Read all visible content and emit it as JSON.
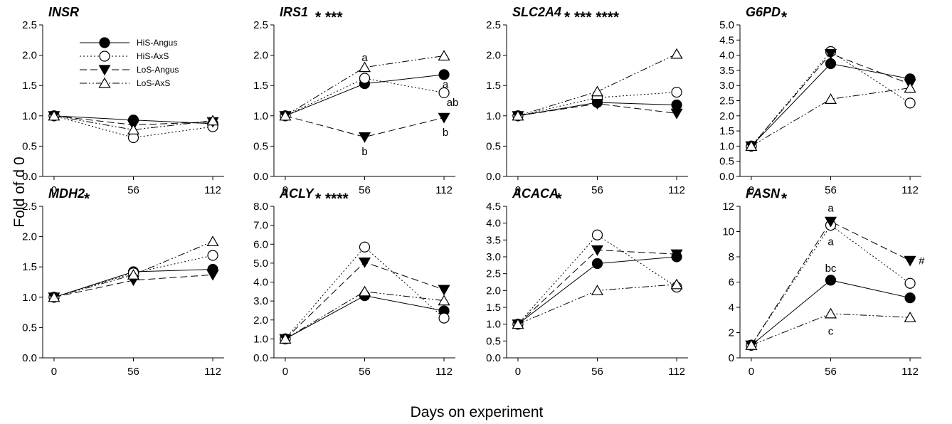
{
  "figure": {
    "ylabel": "Fold of d 0",
    "xlabel": "Days on experiment"
  },
  "legend": [
    {
      "name": "HiS-Angus",
      "marker": "circle-filled",
      "dash": "solid"
    },
    {
      "name": "HiS-AxS",
      "marker": "circle-open",
      "dash": "dotted"
    },
    {
      "name": "LoS-Angus",
      "marker": "triangle-down-filled",
      "dash": "dashed"
    },
    {
      "name": "LoS-AxS",
      "marker": "triangle-up-open",
      "dash": "dashdotdot"
    }
  ],
  "chart_data": [
    {
      "type": "line",
      "title": "INSR",
      "stars": "",
      "x": [
        0,
        56,
        112
      ],
      "ylim": [
        0,
        2.5
      ],
      "yticks": [
        "0.0",
        "0.5",
        "1.0",
        "1.5",
        "2.0",
        "2.5"
      ],
      "series": [
        {
          "name": "HiS-Angus",
          "values": [
            1.0,
            0.93,
            0.87
          ]
        },
        {
          "name": "HiS-AxS",
          "values": [
            1.0,
            0.64,
            0.82
          ]
        },
        {
          "name": "LoS-Angus",
          "values": [
            1.0,
            0.85,
            0.9
          ]
        },
        {
          "name": "LoS-AxS",
          "values": [
            1.0,
            0.77,
            0.92
          ]
        }
      ],
      "annotations": []
    },
    {
      "type": "line",
      "title": "IRS1",
      "stars": "* ***",
      "x": [
        0,
        56,
        112
      ],
      "ylim": [
        0,
        2.5
      ],
      "yticks": [
        "0.0",
        "0.5",
        "1.0",
        "1.5",
        "2.0",
        "2.5"
      ],
      "series": [
        {
          "name": "HiS-Angus",
          "values": [
            1.0,
            1.53,
            1.68
          ]
        },
        {
          "name": "HiS-AxS",
          "values": [
            1.0,
            1.62,
            1.38
          ]
        },
        {
          "name": "LoS-Angus",
          "values": [
            1.0,
            0.65,
            0.97
          ]
        },
        {
          "name": "LoS-AxS",
          "values": [
            1.0,
            1.8,
            1.99
          ]
        }
      ],
      "annotations": [
        {
          "text": "a",
          "x": 56,
          "y": 1.96
        },
        {
          "text": "b",
          "x": 56,
          "y": 0.41
        },
        {
          "text": "a",
          "x": 112,
          "y": 1.52
        },
        {
          "text": "ab",
          "x": 112,
          "y": 1.22
        },
        {
          "text": "b",
          "x": 112,
          "y": 0.73
        }
      ]
    },
    {
      "type": "line",
      "title": "SLC2A4",
      "stars": "* *** ****",
      "x": [
        0,
        56,
        112
      ],
      "ylim": [
        0,
        2.5
      ],
      "yticks": [
        "0.0",
        "0.5",
        "1.0",
        "1.5",
        "2.0",
        "2.5"
      ],
      "series": [
        {
          "name": "HiS-Angus",
          "values": [
            1.0,
            1.22,
            1.18
          ]
        },
        {
          "name": "HiS-AxS",
          "values": [
            1.0,
            1.3,
            1.39
          ]
        },
        {
          "name": "LoS-Angus",
          "values": [
            1.0,
            1.2,
            1.04
          ]
        },
        {
          "name": "LoS-AxS",
          "values": [
            1.0,
            1.4,
            2.02
          ]
        }
      ],
      "annotations": []
    },
    {
      "type": "line",
      "title": "G6PD",
      "stars": "*",
      "x": [
        0,
        56,
        112
      ],
      "ylim": [
        0,
        5.0
      ],
      "yticks": [
        "0.0",
        "0.5",
        "1.0",
        "1.5",
        "2.0",
        "2.5",
        "3.0",
        "3.5",
        "4.0",
        "4.5",
        "5.0"
      ],
      "series": [
        {
          "name": "HiS-Angus",
          "values": [
            1.0,
            3.72,
            3.22
          ]
        },
        {
          "name": "HiS-AxS",
          "values": [
            1.0,
            4.12,
            2.42
          ]
        },
        {
          "name": "LoS-Angus",
          "values": [
            1.0,
            4.05,
            3.05
          ]
        },
        {
          "name": "LoS-AxS",
          "values": [
            1.0,
            2.55,
            2.92
          ]
        }
      ],
      "annotations": []
    },
    {
      "type": "line",
      "title": "MDH2",
      "stars": "*",
      "x": [
        0,
        56,
        112
      ],
      "ylim": [
        0,
        2.5
      ],
      "yticks": [
        "0.0",
        "0.5",
        "1.0",
        "1.5",
        "2.0",
        "2.5"
      ],
      "series": [
        {
          "name": "HiS-Angus",
          "values": [
            1.0,
            1.42,
            1.46
          ]
        },
        {
          "name": "HiS-AxS",
          "values": [
            1.0,
            1.4,
            1.69
          ]
        },
        {
          "name": "LoS-Angus",
          "values": [
            1.0,
            1.28,
            1.37
          ]
        },
        {
          "name": "LoS-AxS",
          "values": [
            1.0,
            1.37,
            1.92
          ]
        }
      ],
      "annotations": []
    },
    {
      "type": "line",
      "title": "ACLY",
      "stars": "* ****",
      "x": [
        0,
        56,
        112
      ],
      "ylim": [
        0,
        8.0
      ],
      "yticks": [
        "0.0",
        "1.0",
        "2.0",
        "3.0",
        "4.0",
        "5.0",
        "6.0",
        "7.0",
        "8.0"
      ],
      "series": [
        {
          "name": "HiS-Angus",
          "values": [
            1.0,
            3.28,
            2.48
          ]
        },
        {
          "name": "HiS-AxS",
          "values": [
            1.0,
            5.85,
            2.1
          ]
        },
        {
          "name": "LoS-Angus",
          "values": [
            1.0,
            5.05,
            3.6
          ]
        },
        {
          "name": "LoS-AxS",
          "values": [
            1.0,
            3.5,
            3.02
          ]
        }
      ],
      "annotations": []
    },
    {
      "type": "line",
      "title": "ACACA",
      "stars": "*",
      "x": [
        0,
        56,
        112
      ],
      "ylim": [
        0,
        4.5
      ],
      "yticks": [
        "0.0",
        "0.5",
        "1.0",
        "1.5",
        "2.0",
        "2.5",
        "3.0",
        "3.5",
        "4.0",
        "4.5"
      ],
      "series": [
        {
          "name": "HiS-Angus",
          "values": [
            1.0,
            2.8,
            3.0
          ]
        },
        {
          "name": "HiS-AxS",
          "values": [
            1.0,
            3.65,
            2.1
          ]
        },
        {
          "name": "LoS-Angus",
          "values": [
            1.0,
            3.2,
            3.08
          ]
        },
        {
          "name": "LoS-AxS",
          "values": [
            1.0,
            2.0,
            2.18
          ]
        }
      ],
      "annotations": []
    },
    {
      "type": "line",
      "title": "FASN",
      "stars": "*",
      "x": [
        0,
        56,
        112
      ],
      "ylim": [
        0,
        12
      ],
      "yticks": [
        "0",
        "2",
        "4",
        "6",
        "8",
        "10",
        "12"
      ],
      "series": [
        {
          "name": "HiS-Angus",
          "values": [
            1.0,
            6.15,
            4.75
          ]
        },
        {
          "name": "HiS-AxS",
          "values": [
            1.0,
            10.5,
            5.9
          ]
        },
        {
          "name": "LoS-Angus",
          "values": [
            1.0,
            10.8,
            7.7
          ]
        },
        {
          "name": "LoS-AxS",
          "values": [
            1.0,
            3.5,
            3.2
          ]
        }
      ],
      "annotations": [
        {
          "text": "a",
          "x": 56,
          "y": 11.85
        },
        {
          "text": "a",
          "x": 56,
          "y": 9.2
        },
        {
          "text": "bc",
          "x": 56,
          "y": 7.1
        },
        {
          "text": "c",
          "x": 56,
          "y": 2.1
        },
        {
          "text": "#",
          "x": 112,
          "y": 7.7
        }
      ]
    }
  ]
}
